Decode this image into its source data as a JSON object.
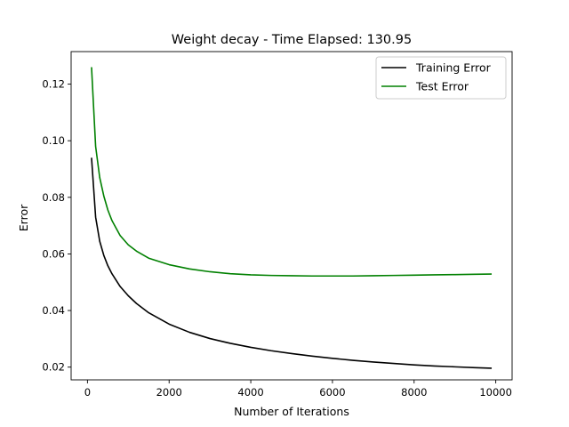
{
  "chart_data": {
    "type": "line",
    "title": "Weight decay - Time Elapsed: 130.95",
    "xlabel": "Number of Iterations",
    "ylabel": "Error",
    "xlim": [
      -400,
      10400
    ],
    "ylim": [
      0.0155,
      0.1315
    ],
    "xticks": [
      0,
      2000,
      4000,
      6000,
      8000,
      10000
    ],
    "xtick_labels": [
      "0",
      "2000",
      "4000",
      "6000",
      "8000",
      "10000"
    ],
    "yticks": [
      0.02,
      0.04,
      0.06,
      0.08,
      0.1,
      0.12
    ],
    "ytick_labels": [
      "0.02",
      "0.04",
      "0.06",
      "0.08",
      "0.10",
      "0.12"
    ],
    "grid": false,
    "legend_position": "top-right",
    "x": [
      100,
      200,
      300,
      400,
      500,
      600,
      800,
      1000,
      1200,
      1500,
      2000,
      2500,
      3000,
      3500,
      4000,
      4500,
      5000,
      5500,
      6000,
      6500,
      7000,
      7500,
      8000,
      8500,
      9000,
      9500,
      9900
    ],
    "series": [
      {
        "name": "Training Error",
        "color": "#000000",
        "values": [
          0.094,
          0.073,
          0.0645,
          0.0595,
          0.0558,
          0.053,
          0.0485,
          0.0452,
          0.0425,
          0.0392,
          0.0352,
          0.0323,
          0.0301,
          0.0284,
          0.027,
          0.0258,
          0.0248,
          0.0239,
          0.0231,
          0.0224,
          0.0218,
          0.0213,
          0.0208,
          0.0204,
          0.0201,
          0.0198,
          0.0196
        ]
      },
      {
        "name": "Test Error",
        "color": "#008000",
        "values": [
          0.126,
          0.098,
          0.087,
          0.0805,
          0.0755,
          0.0718,
          0.0665,
          0.0632,
          0.061,
          0.0585,
          0.0562,
          0.0547,
          0.0537,
          0.053,
          0.0526,
          0.0524,
          0.0523,
          0.0522,
          0.0522,
          0.0522,
          0.0523,
          0.0524,
          0.0525,
          0.0526,
          0.0527,
          0.0528,
          0.0529
        ]
      }
    ]
  }
}
